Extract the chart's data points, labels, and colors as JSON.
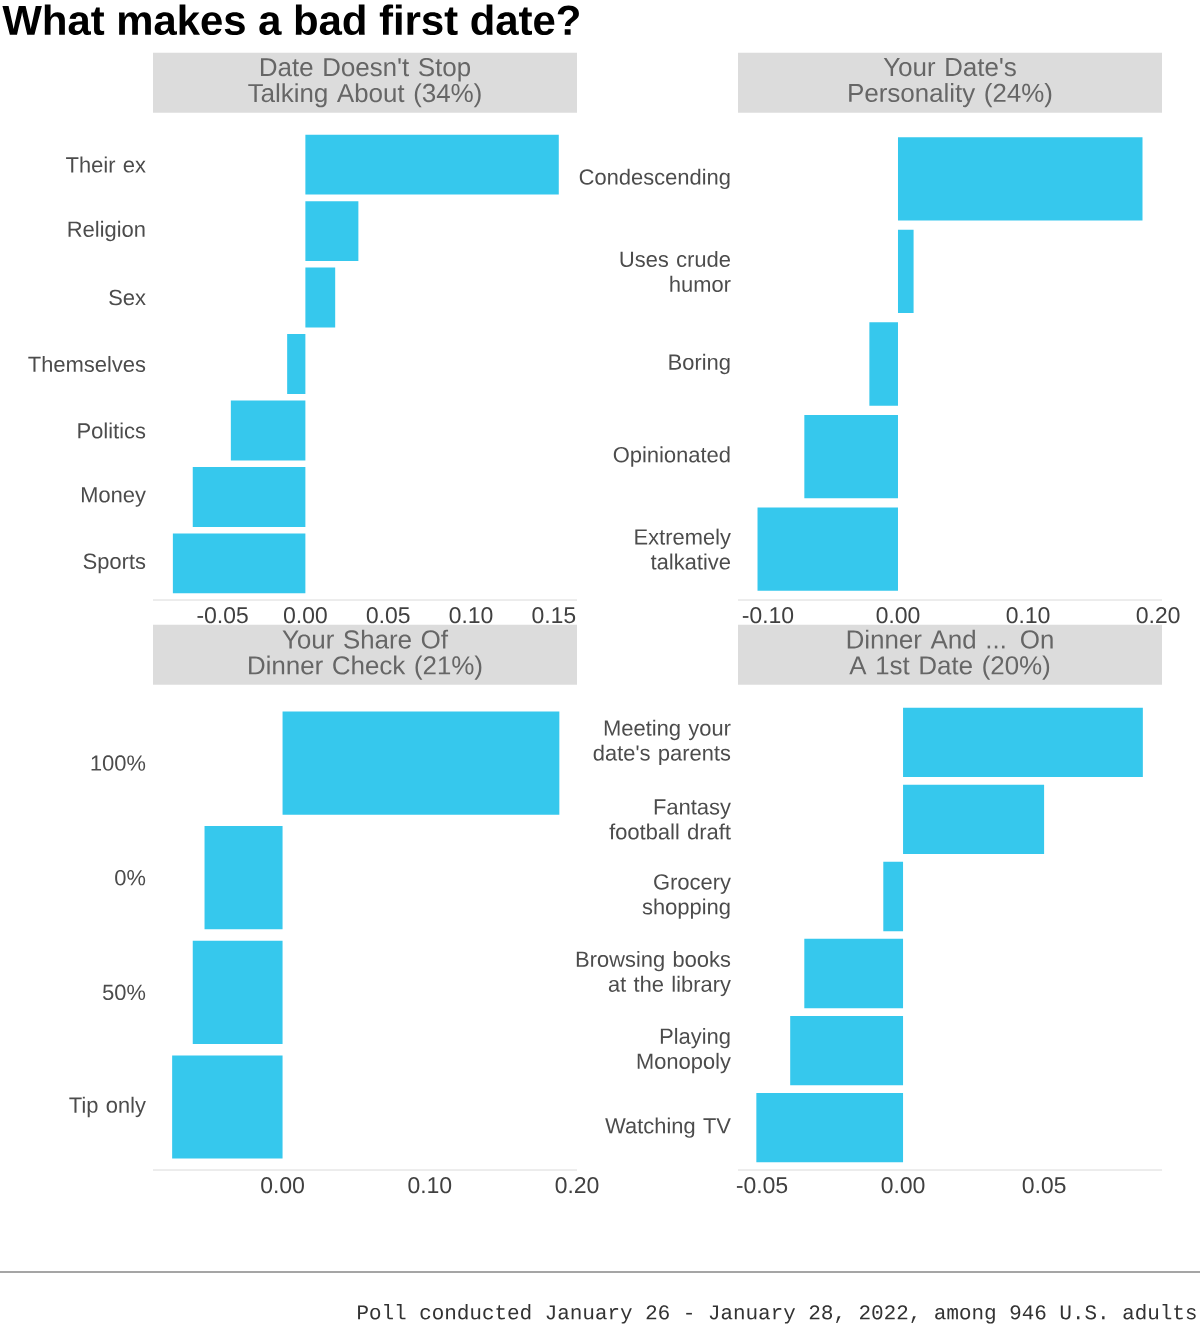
{
  "chart_data": [
    {
      "type": "other",
      "title": "What makes a bad first date?",
      "annotations": [
        "Poll conducted January 26 - January 28, 2022, among 946 U.S. adults"
      ]
    },
    {
      "type": "bar",
      "orientation": "horizontal",
      "title": "Date Doesn't Stop Talking About (34%)",
      "color": "#36c8ed",
      "categories": [
        "Their ex",
        "Religion",
        "Sex",
        "Themselves",
        "Politics",
        "Money",
        "Sports"
      ],
      "values": [
        0.153,
        0.032,
        0.018,
        -0.011,
        -0.045,
        -0.068,
        -0.08
      ],
      "xlim": [
        -0.092,
        0.164
      ],
      "xticks": [
        {
          "value": -0.05,
          "label": "-0.05"
        },
        {
          "value": 0,
          "label": "0.00"
        },
        {
          "value": 0.05,
          "label": "0.05"
        },
        {
          "value": 0.1,
          "label": "0.10"
        },
        {
          "value": 0.15,
          "label": "0.15"
        }
      ]
    },
    {
      "type": "bar",
      "orientation": "horizontal",
      "title": "Your Date's Personality (24%)",
      "color": "#36c8ed",
      "categories": [
        "Condescending",
        "Uses crude humor",
        "Boring",
        "Opinionated",
        "Extremely talkative"
      ],
      "values": [
        0.188,
        0.012,
        -0.022,
        -0.072,
        -0.108
      ],
      "xlim": [
        -0.123,
        0.203
      ],
      "xticks": [
        {
          "value": -0.1,
          "label": "-0.10"
        },
        {
          "value": 0,
          "label": "0.00"
        },
        {
          "value": 0.1,
          "label": "0.10"
        },
        {
          "value": 0.2,
          "label": "0.20"
        }
      ]
    },
    {
      "type": "bar",
      "orientation": "horizontal",
      "title": "Your Share Of Dinner Check (21%)",
      "color": "#36c8ed",
      "categories": [
        "100%",
        "0%",
        "50%",
        "Tip only"
      ],
      "values": [
        0.188,
        -0.053,
        -0.061,
        -0.075
      ],
      "xlim": [
        -0.088,
        0.2
      ],
      "xticks": [
        {
          "value": 0,
          "label": "0.00"
        },
        {
          "value": 0.1,
          "label": "0.10"
        },
        {
          "value": 0.2,
          "label": "0.20"
        }
      ]
    },
    {
      "type": "bar",
      "orientation": "horizontal",
      "title": "Dinner And ... On A 1st Date (20%)",
      "color": "#36c8ed",
      "categories": [
        "Meeting your date's parents",
        "Fantasy football draft",
        "Grocery shopping",
        "Browsing books at the library",
        "Playing Monopoly",
        "Watching TV"
      ],
      "values": [
        0.085,
        0.05,
        -0.007,
        -0.035,
        -0.04,
        -0.052
      ],
      "xlim": [
        -0.0585,
        0.0918
      ],
      "xticks": [
        {
          "value": -0.05,
          "label": "-0.05"
        },
        {
          "value": 0,
          "label": "0.00"
        },
        {
          "value": 0.05,
          "label": "0.05"
        }
      ]
    }
  ]
}
